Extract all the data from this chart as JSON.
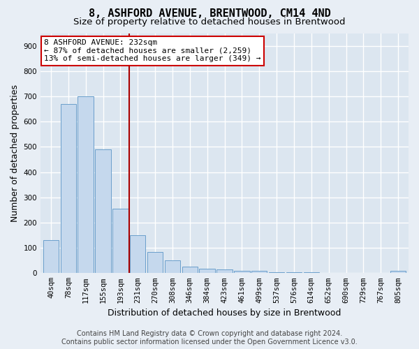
{
  "title": "8, ASHFORD AVENUE, BRENTWOOD, CM14 4ND",
  "subtitle": "Size of property relative to detached houses in Brentwood",
  "xlabel": "Distribution of detached houses by size in Brentwood",
  "ylabel": "Number of detached properties",
  "categories": [
    "40sqm",
    "78sqm",
    "117sqm",
    "155sqm",
    "193sqm",
    "231sqm",
    "270sqm",
    "308sqm",
    "346sqm",
    "384sqm",
    "423sqm",
    "461sqm",
    "499sqm",
    "537sqm",
    "576sqm",
    "614sqm",
    "652sqm",
    "690sqm",
    "729sqm",
    "767sqm",
    "805sqm"
  ],
  "values": [
    130,
    670,
    700,
    490,
    255,
    150,
    85,
    50,
    25,
    18,
    15,
    10,
    8,
    3,
    3,
    3,
    0,
    0,
    0,
    0,
    8
  ],
  "bar_color": "#c5d8ed",
  "bar_edge_color": "#6a9fcb",
  "annotation_line1": "8 ASHFORD AVENUE: 232sqm",
  "annotation_line2": "← 87% of detached houses are smaller (2,259)",
  "annotation_line3": "13% of semi-detached houses are larger (349) →",
  "annotation_box_color": "#ffffff",
  "annotation_box_edge": "#cc0000",
  "vline_x": 4.5,
  "vline_color": "#aa0000",
  "ylim": [
    0,
    950
  ],
  "yticks": [
    0,
    100,
    200,
    300,
    400,
    500,
    600,
    700,
    800,
    900
  ],
  "footer_line1": "Contains HM Land Registry data © Crown copyright and database right 2024.",
  "footer_line2": "Contains public sector information licensed under the Open Government Licence v3.0.",
  "bg_color": "#e8eef5",
  "plot_bg_color": "#dce6f0",
  "grid_color": "#ffffff",
  "title_fontsize": 11,
  "subtitle_fontsize": 9.5,
  "tick_fontsize": 7.5,
  "ylabel_fontsize": 9,
  "xlabel_fontsize": 9,
  "footer_fontsize": 7,
  "annot_fontsize": 8
}
